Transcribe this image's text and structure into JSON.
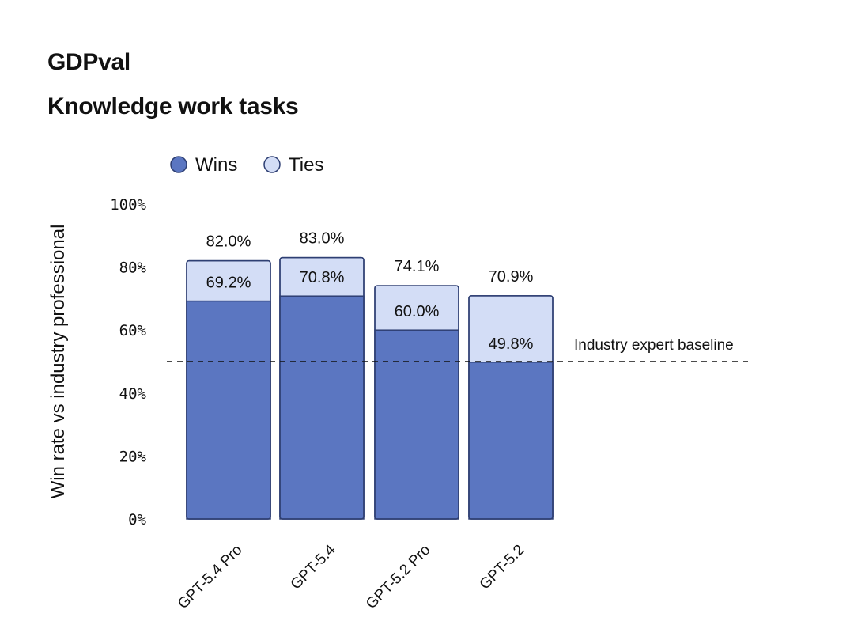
{
  "title": "GDPval",
  "subtitle": "Knowledge work tasks",
  "colors": {
    "wins": "#5b76c1",
    "ties": "#d3ddf6",
    "outline": "#2e3f73",
    "baseline": "#111111"
  },
  "chart_data": {
    "type": "bar",
    "stacked": true,
    "categories": [
      "GPT-5.4 Pro",
      "GPT-5.4",
      "GPT-5.2 Pro",
      "GPT-5.2"
    ],
    "series": [
      {
        "name": "Wins",
        "values": [
          69.2,
          70.8,
          60.0,
          49.8
        ]
      },
      {
        "name": "Ties",
        "values": [
          12.8,
          12.2,
          14.1,
          21.1
        ]
      }
    ],
    "win_labels": [
      "69.2%",
      "70.8%",
      "60.0%",
      "49.8%"
    ],
    "total_labels": [
      "82.0%",
      "83.0%",
      "74.1%",
      "70.9%"
    ],
    "ylabel": "Win rate vs industry professional",
    "xlabel": "",
    "ylim": [
      0,
      100
    ],
    "yticks": [
      0,
      20,
      40,
      60,
      80,
      100
    ],
    "ytick_labels": [
      "0%",
      "20%",
      "40%",
      "60%",
      "80%",
      "100%"
    ],
    "legend_position": "top-left",
    "grid": false,
    "reference_line": {
      "value": 50,
      "label": "Industry expert baseline",
      "style": "dashed"
    }
  }
}
